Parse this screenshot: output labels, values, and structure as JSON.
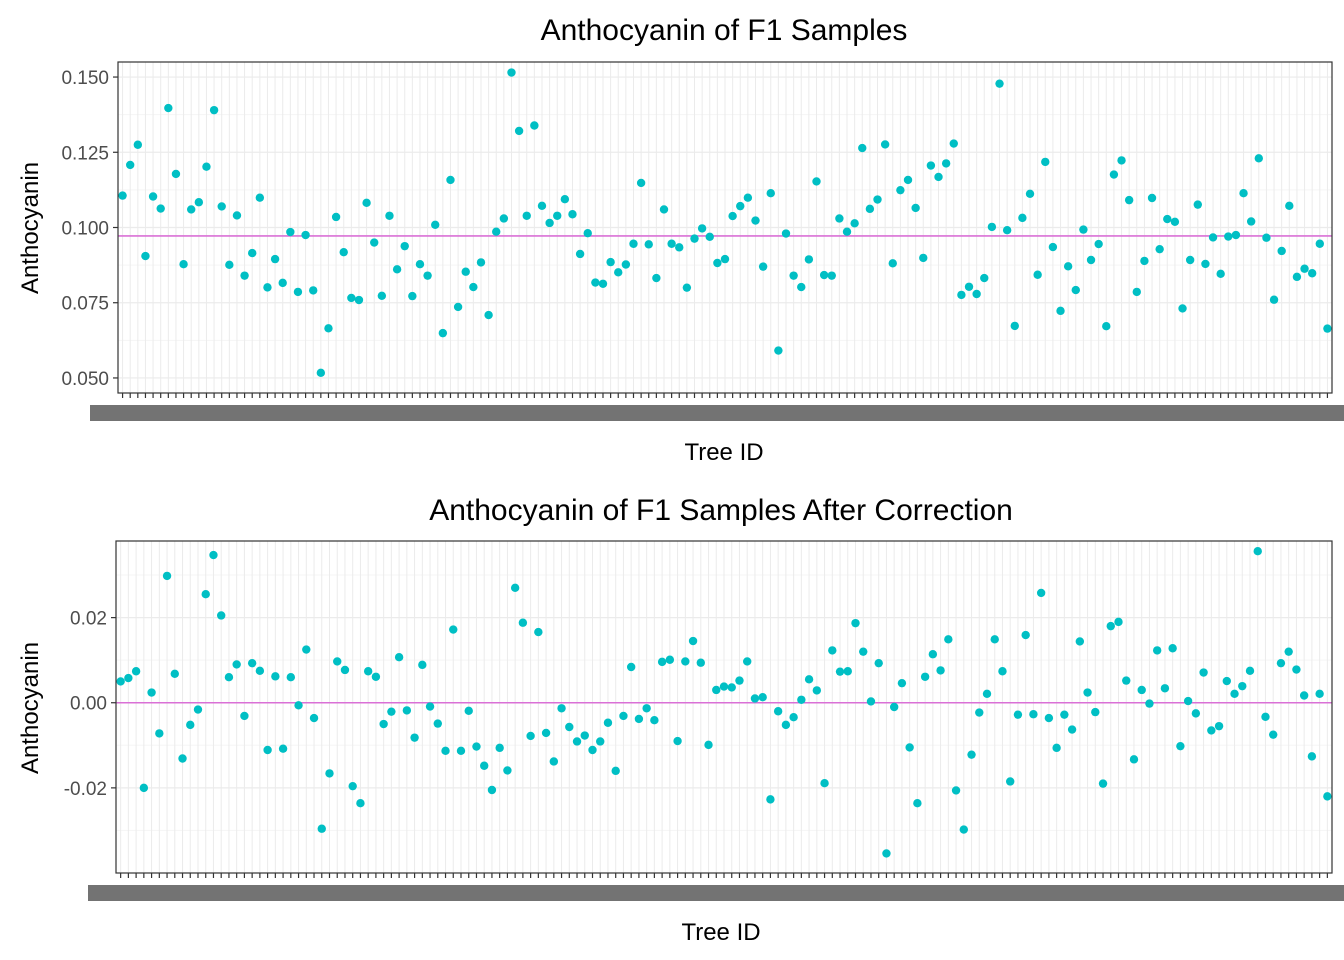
{
  "chart_data": [
    {
      "type": "scatter",
      "title": "Anthocyanin of F1 Samples",
      "xlabel": "Tree ID",
      "ylabel": "Anthocyanin",
      "ylim": [
        0.045,
        0.155
      ],
      "yticks": [
        0.05,
        0.075,
        0.1,
        0.125,
        0.15
      ],
      "ytick_labels": [
        "0.050",
        "0.075",
        "0.100",
        "0.125",
        "0.150"
      ],
      "reference_line": 0.0972,
      "grid": true,
      "colors": {
        "points": "#00BFC4",
        "reference_line": "#DA70D6",
        "panel_border": "#333333",
        "grid_major": "#EBEBEB",
        "grid_minor": "#F5F5F5"
      },
      "x_tick_labels_note": "category labels overprinted and illegible",
      "series": [
        {
          "values": [
            0.1106,
            0.1208,
            0.1275,
            0.0905,
            0.1103,
            0.1063,
            0.1397,
            0.1178,
            0.0878,
            0.106,
            0.1084,
            0.1202,
            0.139,
            0.107,
            0.0876,
            0.104,
            0.084,
            0.0915,
            0.1099,
            0.0801,
            0.0895,
            0.0816,
            0.0985,
            0.0786,
            0.0975,
            0.0791,
            0.0517,
            0.0665,
            0.1035,
            0.0918,
            0.0766,
            0.0759,
            0.1082,
            0.095,
            0.0773,
            0.1039,
            0.0861,
            0.0938,
            0.0772,
            0.0878,
            0.084,
            0.1009,
            0.0649,
            0.1158,
            0.0736,
            0.0853,
            0.0802,
            0.0884,
            0.0709,
            0.0986,
            0.103,
            0.1515,
            0.1321,
            0.1039,
            0.1339,
            0.1072,
            0.1015,
            0.1039,
            0.1094,
            0.1044,
            0.0912,
            0.0981,
            0.0817,
            0.0813,
            0.0885,
            0.0851,
            0.0877,
            0.0946,
            0.1148,
            0.0944,
            0.0832,
            0.106,
            0.0946,
            0.0934,
            0.08,
            0.0963,
            0.0997,
            0.0969,
            0.0882,
            0.0895,
            0.1038,
            0.1071,
            0.1099,
            0.1023,
            0.087,
            0.1114,
            0.0591,
            0.098,
            0.084,
            0.0802,
            0.0894,
            0.1153,
            0.0842,
            0.084,
            0.103,
            0.0986,
            0.1014,
            0.1264,
            0.1062,
            0.1093,
            0.1276,
            0.0881,
            0.1124,
            0.1158,
            0.1065,
            0.0899,
            0.1206,
            0.1168,
            0.1213,
            0.1279,
            0.0776,
            0.0803,
            0.0779,
            0.0832,
            0.1002,
            0.1478,
            0.0991,
            0.0673,
            0.1032,
            0.1112,
            0.0843,
            0.1218,
            0.0935,
            0.0723,
            0.0871,
            0.0792,
            0.0993,
            0.0892,
            0.0945,
            0.0672,
            0.1176,
            0.1223,
            0.1091,
            0.0786,
            0.0889,
            0.1098,
            0.0928,
            0.1028,
            0.1019,
            0.0731,
            0.0892,
            0.1076,
            0.0879,
            0.0967,
            0.0846,
            0.097,
            0.0975,
            0.1114,
            0.102,
            0.123,
            0.0966,
            0.076,
            0.0922,
            0.1072,
            0.0836,
            0.0863,
            0.0848,
            0.0946,
            0.0664
          ]
        }
      ]
    },
    {
      "type": "scatter",
      "title": "Anthocyanin of F1 Samples After Correction",
      "xlabel": "Tree ID",
      "ylabel": "Anthocyanin",
      "ylim": [
        -0.04,
        0.038
      ],
      "yticks": [
        -0.02,
        0.0,
        0.02
      ],
      "ytick_labels": [
        "-0.02",
        "0.00",
        "0.02"
      ],
      "reference_line": 0.0,
      "grid": true,
      "colors": {
        "points": "#00BFC4",
        "reference_line": "#DA70D6",
        "panel_border": "#333333",
        "grid_major": "#EBEBEB",
        "grid_minor": "#F5F5F5"
      },
      "x_tick_labels_note": "category labels overprinted and illegible",
      "series": [
        {
          "values": [
            0.005,
            0.0058,
            0.0074,
            -0.02,
            0.0024,
            -0.0072,
            0.0298,
            0.0068,
            -0.0131,
            -0.0052,
            -0.0016,
            0.0255,
            0.0347,
            0.0205,
            0.006,
            0.009,
            -0.0031,
            0.0093,
            0.0075,
            -0.0111,
            0.0062,
            -0.0108,
            0.006,
            -0.0006,
            0.0125,
            -0.0036,
            -0.0296,
            -0.0166,
            0.0097,
            0.0077,
            -0.0196,
            -0.0236,
            0.0074,
            0.0061,
            -0.005,
            -0.0021,
            0.0107,
            -0.0018,
            -0.0082,
            0.0089,
            -0.0009,
            -0.0049,
            -0.0113,
            0.0172,
            -0.0113,
            -0.0019,
            -0.0103,
            -0.0148,
            -0.0205,
            -0.0106,
            -0.0159,
            0.027,
            0.0188,
            -0.0078,
            0.0166,
            -0.0071,
            -0.0138,
            -0.0013,
            -0.0057,
            -0.0091,
            -0.0077,
            -0.0111,
            -0.0091,
            -0.0047,
            -0.016,
            -0.0031,
            0.0084,
            -0.0038,
            -0.0013,
            -0.0041,
            0.0096,
            0.0101,
            -0.009,
            0.0097,
            0.0145,
            0.0094,
            -0.0099,
            0.003,
            0.0038,
            0.0036,
            0.0052,
            0.0097,
            0.001,
            0.0013,
            -0.0227,
            -0.002,
            -0.0052,
            -0.0034,
            0.0007,
            0.0055,
            0.0029,
            -0.0189,
            0.0123,
            0.0073,
            0.0074,
            0.0187,
            0.012,
            0.0003,
            0.0093,
            -0.0354,
            -0.001,
            0.0046,
            -0.0105,
            -0.0236,
            0.0061,
            0.0114,
            0.0076,
            0.0149,
            -0.0206,
            -0.0298,
            -0.0122,
            -0.0023,
            0.0021,
            0.0149,
            0.0074,
            -0.0185,
            -0.0028,
            0.0159,
            -0.0027,
            0.0258,
            -0.0036,
            -0.0106,
            -0.0028,
            -0.0063,
            0.0144,
            0.0024,
            -0.0022,
            -0.019,
            0.018,
            0.019,
            0.0052,
            -0.0133,
            0.003,
            -0.0002,
            0.0123,
            0.0034,
            0.0128,
            -0.0102,
            0.0004,
            -0.0025,
            0.0071,
            -0.0065,
            -0.0055,
            0.0051,
            0.0021,
            0.0039,
            0.0075,
            0.0356,
            -0.0033,
            -0.0075,
            0.0093,
            0.012,
            0.0078,
            0.0017,
            -0.0126,
            0.0021,
            -0.022
          ]
        }
      ]
    }
  ]
}
